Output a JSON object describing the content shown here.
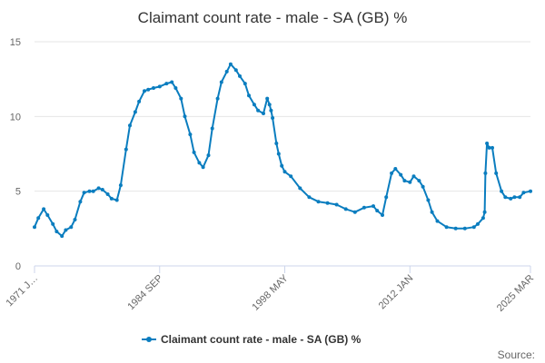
{
  "header": {
    "title": "Claimant count rate - male - SA (GB) %"
  },
  "footer": {
    "source_label": "Source:"
  },
  "colors": {
    "series": "#0a7dbf",
    "grid": "#e6e6e6",
    "axis": "#ccd6eb"
  },
  "chart_data": {
    "type": "line",
    "title": "Claimant count rate - male - SA (GB) %",
    "xlabel": "",
    "ylabel": "",
    "x_tick_labels": [
      "1971 J…",
      "1984 SEP",
      "1998 MAY",
      "2012 JAN",
      "2025 MAR"
    ],
    "x_tick_positions": [
      "1971-01",
      "1984-09",
      "1998-05",
      "2012-01",
      "2025-03"
    ],
    "x_range": [
      "1971-01",
      "2025-03"
    ],
    "y_ticks": [
      0,
      5,
      10,
      15
    ],
    "ylim": [
      0,
      15
    ],
    "grid": "horizontal",
    "markers": true,
    "legend_position": "bottom",
    "series": [
      {
        "name": "Claimant count rate - male - SA (GB) %",
        "x": [
          "1971-01",
          "1971-06",
          "1972-01",
          "1972-06",
          "1973-01",
          "1973-06",
          "1974-01",
          "1974-06",
          "1975-01",
          "1975-06",
          "1976-01",
          "1976-06",
          "1977-01",
          "1977-06",
          "1978-01",
          "1978-06",
          "1979-01",
          "1979-06",
          "1980-01",
          "1980-06",
          "1981-01",
          "1981-06",
          "1982-01",
          "1982-06",
          "1983-01",
          "1983-06",
          "1984-01",
          "1984-09",
          "1985-06",
          "1986-01",
          "1986-06",
          "1987-01",
          "1987-06",
          "1988-01",
          "1988-06",
          "1989-01",
          "1989-06",
          "1990-01",
          "1990-06",
          "1991-01",
          "1991-06",
          "1992-01",
          "1992-06",
          "1993-01",
          "1993-06",
          "1994-01",
          "1994-06",
          "1995-01",
          "1995-06",
          "1996-01",
          "1996-06",
          "1996-09",
          "1996-11",
          "1997-01",
          "1997-06",
          "1997-09",
          "1998-01",
          "1998-05",
          "1999-01",
          "2000-01",
          "2001-01",
          "2002-01",
          "2003-01",
          "2004-01",
          "2005-01",
          "2006-01",
          "2007-01",
          "2008-01",
          "2008-06",
          "2009-01",
          "2009-06",
          "2010-01",
          "2010-06",
          "2011-01",
          "2011-06",
          "2012-01",
          "2012-06",
          "2013-01",
          "2013-06",
          "2014-01",
          "2014-06",
          "2015-01",
          "2016-01",
          "2017-01",
          "2018-01",
          "2019-01",
          "2019-06",
          "2020-01",
          "2020-03",
          "2020-04",
          "2020-06",
          "2020-09",
          "2021-01",
          "2021-06",
          "2022-01",
          "2022-06",
          "2023-01",
          "2023-06",
          "2024-01",
          "2024-06",
          "2025-03"
        ],
        "values": [
          2.6,
          3.2,
          3.8,
          3.4,
          2.8,
          2.3,
          2.0,
          2.4,
          2.6,
          3.1,
          4.3,
          4.9,
          5.0,
          5.0,
          5.2,
          5.1,
          4.8,
          4.5,
          4.4,
          5.4,
          7.8,
          9.4,
          10.3,
          11.0,
          11.7,
          11.8,
          11.9,
          12.0,
          12.2,
          12.3,
          11.9,
          11.2,
          10.0,
          8.8,
          7.6,
          6.9,
          6.6,
          7.4,
          9.2,
          11.2,
          12.3,
          13.0,
          13.5,
          13.1,
          12.7,
          12.2,
          11.4,
          10.8,
          10.4,
          10.2,
          11.2,
          10.8,
          10.4,
          9.9,
          8.2,
          7.5,
          6.7,
          6.3,
          6.0,
          5.2,
          4.6,
          4.3,
          4.2,
          4.1,
          3.8,
          3.6,
          3.9,
          4.0,
          3.7,
          3.4,
          4.6,
          6.2,
          6.5,
          6.1,
          5.7,
          5.6,
          6.0,
          5.7,
          5.3,
          4.4,
          3.6,
          3.0,
          2.6,
          2.5,
          2.5,
          2.6,
          2.8,
          3.2,
          3.6,
          6.2,
          8.2,
          7.9,
          7.9,
          6.2,
          5.0,
          4.6,
          4.5,
          4.6,
          4.6,
          4.9,
          5.0
        ]
      }
    ]
  }
}
